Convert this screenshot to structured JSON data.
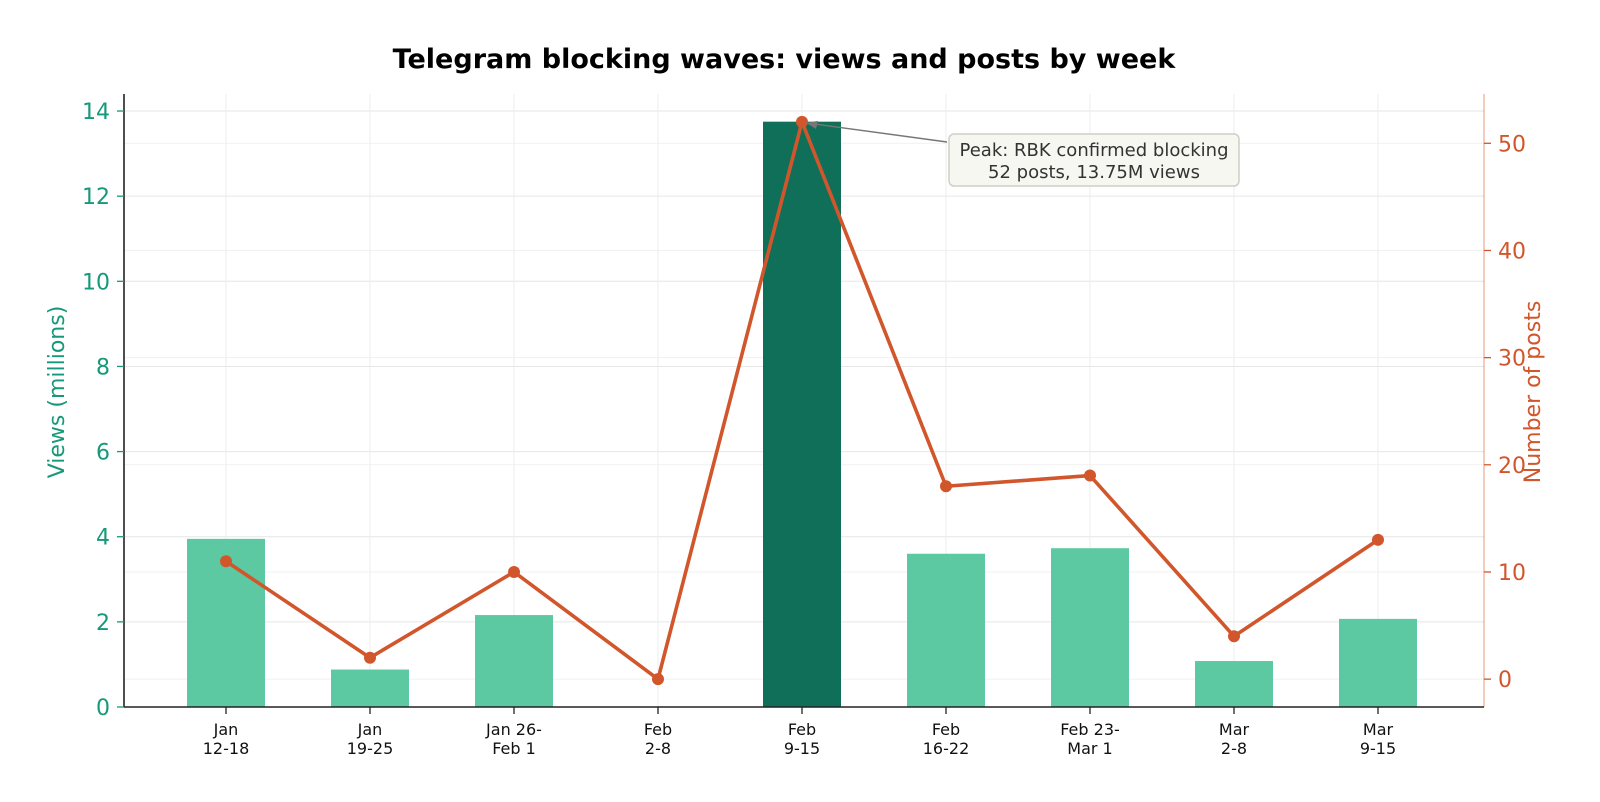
{
  "chart_data": {
    "type": "bar+line",
    "title": "Telegram blocking waves: views and posts by week",
    "categories": [
      [
        "Jan",
        "12-18"
      ],
      [
        "Jan",
        "19-25"
      ],
      [
        "Jan 26-",
        "Feb 1"
      ],
      [
        "Feb",
        "2-8"
      ],
      [
        "Feb",
        "9-15"
      ],
      [
        "Feb",
        "16-22"
      ],
      [
        "Feb 23-",
        "Mar 1"
      ],
      [
        "Mar",
        "2-8"
      ],
      [
        "Mar",
        "9-15"
      ]
    ],
    "series": [
      {
        "name": "Views (millions)",
        "type": "bar",
        "axis": "left",
        "values": [
          3.95,
          0.88,
          2.16,
          0.0,
          13.75,
          3.6,
          3.73,
          1.08,
          2.07
        ],
        "color": "#5dc9a3",
        "highlight_index": 4,
        "highlight_color": "#0f6f58"
      },
      {
        "name": "Number of posts",
        "type": "line",
        "axis": "right",
        "values": [
          11,
          2,
          10,
          0,
          52,
          18,
          19,
          4,
          13
        ],
        "color": "#d2562b"
      }
    ],
    "ylabel_left": "Views (millions)",
    "ylabel_right": "Number of posts",
    "ylim_left": [
      0,
      14.4
    ],
    "yticks_left": [
      "0",
      "2",
      "4",
      "6",
      "8",
      "10",
      "12",
      "14"
    ],
    "ylim_right": [
      -2.6,
      54.6
    ],
    "yticks_right": [
      "0",
      "10",
      "20",
      "30",
      "40",
      "50"
    ],
    "grid": true,
    "annotation": {
      "lines": [
        "Peak: RBK confirmed blocking",
        "52 posts, 13.75M views"
      ],
      "target_index": 4
    },
    "colors": {
      "left_axis": "#16997a",
      "right_axis": "#d2562b",
      "annotation_bg": "#f7f7f2",
      "annotation_border": "#cfcfc6"
    }
  }
}
